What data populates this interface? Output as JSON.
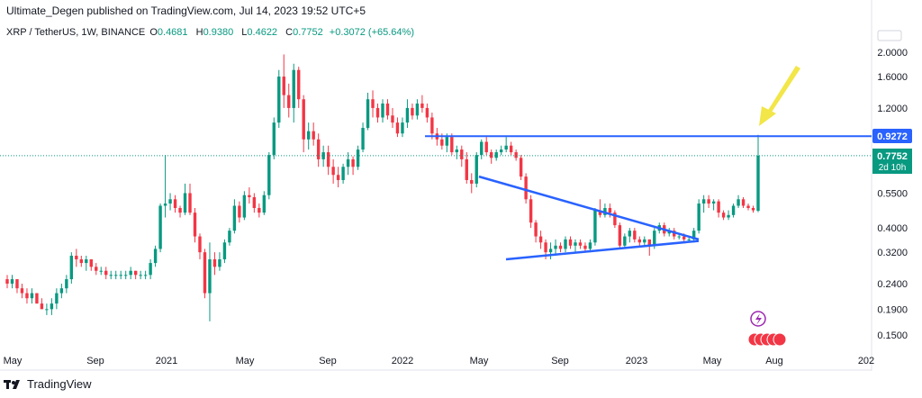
{
  "header": {
    "publisher": "Ultimate_Degen published on TradingView.com, Jul 14, 2023 19:52 UTC+5",
    "symbol": "XRP / TetherUS, 1W, BINANCE",
    "o_label": "O",
    "o_value": "0.4681",
    "h_label": "H",
    "h_value": "0.9380",
    "l_label": "L",
    "l_value": "0.4622",
    "c_label": "C",
    "c_value": "0.7752",
    "change": "+0.3072 (+65.64%)"
  },
  "footer": {
    "brand": "TradingView"
  },
  "chart_data": {
    "type": "candlestick",
    "scale": "log",
    "y_ticks": [
      "2.0000",
      "1.6000",
      "1.2000",
      "0.5500",
      "0.4000",
      "0.3200",
      "0.2400",
      "0.1900",
      "0.1500"
    ],
    "y_tick_values": [
      2.0,
      1.6,
      1.2,
      0.55,
      0.4,
      0.32,
      0.24,
      0.19,
      0.15
    ],
    "x_ticks": [
      "May",
      "Sep",
      "2021",
      "May",
      "Sep",
      "2022",
      "May",
      "Sep",
      "2023",
      "May",
      "Aug",
      "202"
    ],
    "price_label": {
      "value": "0.7752",
      "countdown": "2d 10h",
      "color": "#089981"
    },
    "level_label": {
      "value": "0.9272",
      "color": "#2962ff"
    },
    "horizontal_line": 0.9272,
    "triangle": {
      "upper": [
        [
          0.64,
          "2022-05"
        ],
        [
          0.36,
          "2023-04"
        ]
      ],
      "lower": [
        [
          0.3,
          "2022-06"
        ],
        [
          0.355,
          "2023-04"
        ]
      ]
    },
    "colors": {
      "up": "#089981",
      "down": "#f23645",
      "line": "#2962ff",
      "arrow": "#f2e648"
    },
    "candles": [
      [
        0.25,
        0.26,
        0.23,
        0.24
      ],
      [
        0.24,
        0.26,
        0.23,
        0.25
      ],
      [
        0.25,
        0.25,
        0.22,
        0.23
      ],
      [
        0.23,
        0.24,
        0.21,
        0.22
      ],
      [
        0.22,
        0.23,
        0.2,
        0.21
      ],
      [
        0.21,
        0.23,
        0.2,
        0.22
      ],
      [
        0.22,
        0.22,
        0.2,
        0.2
      ],
      [
        0.2,
        0.21,
        0.19,
        0.19
      ],
      [
        0.19,
        0.2,
        0.18,
        0.19
      ],
      [
        0.19,
        0.21,
        0.18,
        0.2
      ],
      [
        0.2,
        0.23,
        0.19,
        0.22
      ],
      [
        0.22,
        0.24,
        0.21,
        0.23
      ],
      [
        0.23,
        0.26,
        0.22,
        0.25
      ],
      [
        0.25,
        0.32,
        0.24,
        0.31
      ],
      [
        0.31,
        0.33,
        0.28,
        0.3
      ],
      [
        0.3,
        0.31,
        0.28,
        0.29
      ],
      [
        0.29,
        0.31,
        0.27,
        0.3
      ],
      [
        0.3,
        0.3,
        0.27,
        0.28
      ],
      [
        0.28,
        0.29,
        0.26,
        0.27
      ],
      [
        0.27,
        0.28,
        0.26,
        0.27
      ],
      [
        0.27,
        0.28,
        0.25,
        0.26
      ],
      [
        0.26,
        0.27,
        0.25,
        0.26
      ],
      [
        0.26,
        0.27,
        0.25,
        0.26
      ],
      [
        0.26,
        0.27,
        0.25,
        0.26
      ],
      [
        0.26,
        0.27,
        0.25,
        0.26
      ],
      [
        0.26,
        0.28,
        0.25,
        0.27
      ],
      [
        0.27,
        0.27,
        0.25,
        0.26
      ],
      [
        0.26,
        0.27,
        0.25,
        0.26
      ],
      [
        0.26,
        0.27,
        0.25,
        0.26
      ],
      [
        0.26,
        0.3,
        0.25,
        0.29
      ],
      [
        0.29,
        0.34,
        0.28,
        0.33
      ],
      [
        0.33,
        0.5,
        0.32,
        0.49
      ],
      [
        0.49,
        0.78,
        0.44,
        0.5
      ],
      [
        0.5,
        0.55,
        0.47,
        0.52
      ],
      [
        0.52,
        0.54,
        0.46,
        0.48
      ],
      [
        0.48,
        0.49,
        0.44,
        0.46
      ],
      [
        0.46,
        0.6,
        0.45,
        0.55
      ],
      [
        0.55,
        0.6,
        0.45,
        0.46
      ],
      [
        0.46,
        0.48,
        0.35,
        0.37
      ],
      [
        0.37,
        0.38,
        0.3,
        0.32
      ],
      [
        0.32,
        0.33,
        0.21,
        0.22
      ],
      [
        0.22,
        0.35,
        0.17,
        0.3
      ],
      [
        0.3,
        0.32,
        0.26,
        0.28
      ],
      [
        0.28,
        0.32,
        0.27,
        0.3
      ],
      [
        0.3,
        0.36,
        0.29,
        0.35
      ],
      [
        0.35,
        0.4,
        0.34,
        0.39
      ],
      [
        0.39,
        0.52,
        0.38,
        0.49
      ],
      [
        0.49,
        0.51,
        0.42,
        0.44
      ],
      [
        0.44,
        0.56,
        0.43,
        0.54
      ],
      [
        0.54,
        0.58,
        0.5,
        0.53
      ],
      [
        0.53,
        0.55,
        0.46,
        0.48
      ],
      [
        0.48,
        0.5,
        0.44,
        0.46
      ],
      [
        0.46,
        0.56,
        0.45,
        0.54
      ],
      [
        0.54,
        0.8,
        0.52,
        0.78
      ],
      [
        0.78,
        1.1,
        0.75,
        1.05
      ],
      [
        1.05,
        1.7,
        1.0,
        1.6
      ],
      [
        1.6,
        1.96,
        1.2,
        1.35
      ],
      [
        1.35,
        1.5,
        1.1,
        1.2
      ],
      [
        1.2,
        1.8,
        1.05,
        1.7
      ],
      [
        1.7,
        1.75,
        1.2,
        1.3
      ],
      [
        1.3,
        1.35,
        0.8,
        0.9
      ],
      [
        0.9,
        1.05,
        0.82,
        0.97
      ],
      [
        0.97,
        1.05,
        0.85,
        0.9
      ],
      [
        0.9,
        0.95,
        0.7,
        0.75
      ],
      [
        0.75,
        0.85,
        0.7,
        0.8
      ],
      [
        0.8,
        0.85,
        0.65,
        0.7
      ],
      [
        0.7,
        0.75,
        0.6,
        0.65
      ],
      [
        0.65,
        0.7,
        0.58,
        0.62
      ],
      [
        0.62,
        0.72,
        0.6,
        0.7
      ],
      [
        0.7,
        0.8,
        0.65,
        0.75
      ],
      [
        0.75,
        0.77,
        0.65,
        0.7
      ],
      [
        0.7,
        0.85,
        0.68,
        0.82
      ],
      [
        0.82,
        1.05,
        0.8,
        1.0
      ],
      [
        1.0,
        1.38,
        0.98,
        1.3
      ],
      [
        1.3,
        1.41,
        1.1,
        1.2
      ],
      [
        1.2,
        1.25,
        1.05,
        1.1
      ],
      [
        1.1,
        1.3,
        1.05,
        1.25
      ],
      [
        1.25,
        1.3,
        1.08,
        1.12
      ],
      [
        1.12,
        1.2,
        1.0,
        1.05
      ],
      [
        1.05,
        1.1,
        0.92,
        0.95
      ],
      [
        0.95,
        1.1,
        0.92,
        1.05
      ],
      [
        1.05,
        1.3,
        1.0,
        1.2
      ],
      [
        1.2,
        1.25,
        1.08,
        1.12
      ],
      [
        1.12,
        1.3,
        1.08,
        1.25
      ],
      [
        1.25,
        1.35,
        1.15,
        1.2
      ],
      [
        1.2,
        1.25,
        1.05,
        1.1
      ],
      [
        1.1,
        1.15,
        0.9,
        0.95
      ],
      [
        0.95,
        1.0,
        0.85,
        0.9
      ],
      [
        0.9,
        0.95,
        0.82,
        0.85
      ],
      [
        0.85,
        0.95,
        0.8,
        0.92
      ],
      [
        0.92,
        0.95,
        0.78,
        0.8
      ],
      [
        0.8,
        0.85,
        0.75,
        0.82
      ],
      [
        0.82,
        0.85,
        0.7,
        0.75
      ],
      [
        0.75,
        0.8,
        0.6,
        0.62
      ],
      [
        0.62,
        0.66,
        0.55,
        0.6
      ],
      [
        0.6,
        0.8,
        0.58,
        0.78
      ],
      [
        0.78,
        0.9,
        0.75,
        0.88
      ],
      [
        0.88,
        0.92,
        0.78,
        0.8
      ],
      [
        0.8,
        0.82,
        0.72,
        0.76
      ],
      [
        0.76,
        0.82,
        0.74,
        0.8
      ],
      [
        0.8,
        0.85,
        0.78,
        0.82
      ],
      [
        0.82,
        0.92,
        0.8,
        0.85
      ],
      [
        0.85,
        0.88,
        0.78,
        0.8
      ],
      [
        0.8,
        0.82,
        0.74,
        0.76
      ],
      [
        0.76,
        0.78,
        0.62,
        0.64
      ],
      [
        0.64,
        0.66,
        0.5,
        0.52
      ],
      [
        0.52,
        0.54,
        0.4,
        0.42
      ],
      [
        0.42,
        0.43,
        0.35,
        0.37
      ],
      [
        0.37,
        0.39,
        0.33,
        0.35
      ],
      [
        0.35,
        0.36,
        0.3,
        0.32
      ],
      [
        0.32,
        0.35,
        0.3,
        0.33
      ],
      [
        0.33,
        0.36,
        0.31,
        0.34
      ],
      [
        0.34,
        0.35,
        0.32,
        0.33
      ],
      [
        0.33,
        0.37,
        0.32,
        0.36
      ],
      [
        0.36,
        0.37,
        0.33,
        0.34
      ],
      [
        0.34,
        0.36,
        0.32,
        0.35
      ],
      [
        0.35,
        0.36,
        0.33,
        0.34
      ],
      [
        0.34,
        0.35,
        0.32,
        0.33
      ],
      [
        0.33,
        0.36,
        0.32,
        0.35
      ],
      [
        0.35,
        0.48,
        0.34,
        0.47
      ],
      [
        0.47,
        0.52,
        0.44,
        0.45
      ],
      [
        0.45,
        0.5,
        0.44,
        0.48
      ],
      [
        0.48,
        0.5,
        0.44,
        0.46
      ],
      [
        0.46,
        0.47,
        0.4,
        0.41
      ],
      [
        0.41,
        0.42,
        0.33,
        0.34
      ],
      [
        0.34,
        0.38,
        0.33,
        0.37
      ],
      [
        0.37,
        0.4,
        0.35,
        0.39
      ],
      [
        0.39,
        0.4,
        0.35,
        0.36
      ],
      [
        0.36,
        0.37,
        0.34,
        0.35
      ],
      [
        0.35,
        0.37,
        0.34,
        0.36
      ],
      [
        0.36,
        0.36,
        0.31,
        0.34
      ],
      [
        0.34,
        0.4,
        0.33,
        0.39
      ],
      [
        0.39,
        0.42,
        0.38,
        0.41
      ],
      [
        0.41,
        0.42,
        0.37,
        0.38
      ],
      [
        0.38,
        0.4,
        0.37,
        0.39
      ],
      [
        0.39,
        0.4,
        0.36,
        0.37
      ],
      [
        0.37,
        0.38,
        0.36,
        0.37
      ],
      [
        0.37,
        0.38,
        0.35,
        0.36
      ],
      [
        0.36,
        0.37,
        0.35,
        0.36
      ],
      [
        0.36,
        0.4,
        0.35,
        0.39
      ],
      [
        0.39,
        0.52,
        0.38,
        0.5
      ],
      [
        0.5,
        0.54,
        0.46,
        0.52
      ],
      [
        0.52,
        0.54,
        0.48,
        0.5
      ],
      [
        0.5,
        0.52,
        0.47,
        0.51
      ],
      [
        0.51,
        0.52,
        0.44,
        0.46
      ],
      [
        0.46,
        0.47,
        0.43,
        0.44
      ],
      [
        0.44,
        0.47,
        0.43,
        0.45
      ],
      [
        0.45,
        0.5,
        0.44,
        0.49
      ],
      [
        0.49,
        0.54,
        0.48,
        0.52
      ],
      [
        0.52,
        0.53,
        0.48,
        0.49
      ],
      [
        0.49,
        0.5,
        0.47,
        0.48
      ],
      [
        0.48,
        0.49,
        0.46,
        0.47
      ],
      [
        0.4681,
        0.938,
        0.4622,
        0.7752
      ]
    ]
  }
}
